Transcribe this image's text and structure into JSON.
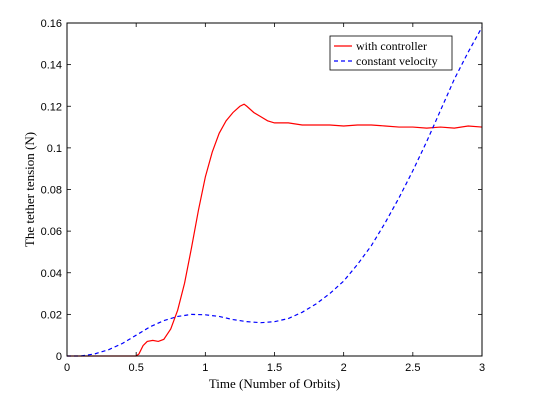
{
  "chart_data": {
    "type": "line",
    "xlabel": "Time (Number of Orbits)",
    "ylabel": "The tether tension (N)",
    "xlim": [
      0,
      3
    ],
    "ylim": [
      0,
      0.16
    ],
    "xticks": [
      "0",
      "0.5",
      "1",
      "1.5",
      "2",
      "2.5",
      "3"
    ],
    "yticks": [
      "0",
      "0.02",
      "0.04",
      "0.06",
      "0.08",
      "0.1",
      "0.12",
      "0.14",
      "0.16"
    ],
    "grid": false,
    "legend_position": "top-right",
    "series": [
      {
        "name": "with controller",
        "color": "#ff0000",
        "style": "solid",
        "x": [
          0,
          0.1,
          0.2,
          0.3,
          0.4,
          0.5,
          0.52,
          0.55,
          0.58,
          0.62,
          0.66,
          0.7,
          0.72,
          0.75,
          0.8,
          0.85,
          0.9,
          0.95,
          1.0,
          1.05,
          1.1,
          1.15,
          1.2,
          1.25,
          1.28,
          1.3,
          1.35,
          1.4,
          1.45,
          1.5,
          1.6,
          1.7,
          1.8,
          1.9,
          2.0,
          2.1,
          2.2,
          2.3,
          2.4,
          2.5,
          2.6,
          2.7,
          2.8,
          2.9,
          3.0
        ],
        "values": [
          0,
          0,
          0,
          0,
          0,
          0,
          0.001,
          0.005,
          0.007,
          0.0075,
          0.007,
          0.008,
          0.01,
          0.013,
          0.022,
          0.035,
          0.052,
          0.07,
          0.086,
          0.098,
          0.107,
          0.113,
          0.117,
          0.12,
          0.121,
          0.12,
          0.117,
          0.115,
          0.113,
          0.112,
          0.112,
          0.111,
          0.111,
          0.111,
          0.1105,
          0.111,
          0.111,
          0.1105,
          0.11,
          0.11,
          0.1095,
          0.11,
          0.1095,
          0.1105,
          0.11
        ]
      },
      {
        "name": "constant velocity",
        "color": "#0000ff",
        "style": "dashed",
        "x": [
          0,
          0.1,
          0.2,
          0.3,
          0.4,
          0.5,
          0.6,
          0.7,
          0.8,
          0.9,
          1.0,
          1.1,
          1.2,
          1.3,
          1.4,
          1.5,
          1.6,
          1.7,
          1.8,
          1.9,
          2.0,
          2.1,
          2.2,
          2.3,
          2.4,
          2.5,
          2.6,
          2.7,
          2.8,
          2.9,
          3.0
        ],
        "values": [
          0,
          0,
          0.001,
          0.003,
          0.006,
          0.01,
          0.014,
          0.017,
          0.019,
          0.02,
          0.0198,
          0.019,
          0.0175,
          0.0165,
          0.016,
          0.0165,
          0.018,
          0.021,
          0.025,
          0.03,
          0.036,
          0.044,
          0.053,
          0.064,
          0.076,
          0.089,
          0.103,
          0.118,
          0.133,
          0.146,
          0.158
        ]
      }
    ]
  }
}
